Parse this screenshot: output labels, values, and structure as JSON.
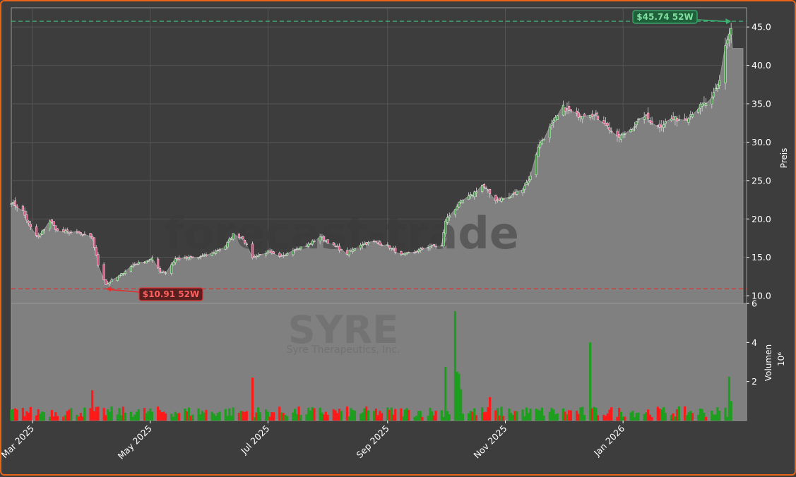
{
  "chart_data": {
    "type": "candlestick",
    "ticker": "SYRE",
    "company": "Syre Therapeutics, Inc.",
    "watermark": "forecast-trade",
    "colors": {
      "background": "#3d3d3d",
      "plot_bg": "#3d3d3d",
      "area_fill": "#808080",
      "up": "#1e9e1e",
      "down": "#ff1a1a",
      "high_line": "#3cb371",
      "low_line": "#e03030",
      "border": "#e8641a"
    },
    "price_panel": {
      "ylabel": "Preis",
      "ylim": [
        9.0,
        47.5
      ],
      "yticks": [
        "10.0",
        "15.0",
        "20.0",
        "25.0",
        "30.0",
        "35.0",
        "40.0",
        "45.0"
      ],
      "grid": true,
      "high_52w": {
        "value": 45.74,
        "label": "$45.74 52W",
        "date": "2026-02-26"
      },
      "low_52w": {
        "value": 10.91,
        "label": "$10.91 52W",
        "date": "2025-04-08"
      },
      "last_close_step": 42.2
    },
    "volume_panel": {
      "ylabel": "Volumen",
      "unit": "10⁶",
      "ylim": [
        0,
        6.0
      ],
      "yticks": [
        "2",
        "4",
        "6"
      ]
    },
    "xaxis": {
      "start": "2025-02-18",
      "end": "2026-03-06",
      "ticks": [
        {
          "date": "2025-03-01",
          "label": "Mar 2025"
        },
        {
          "date": "2025-05-01",
          "label": "May 2025"
        },
        {
          "date": "2025-07-01",
          "label": "Jul 2025"
        },
        {
          "date": "2025-09-01",
          "label": "Sep 2025"
        },
        {
          "date": "2025-11-01",
          "label": "Nov 2025"
        },
        {
          "date": "2026-01-01",
          "label": "Jan 2026"
        }
      ]
    },
    "close_anchors": [
      [
        "2025-02-18",
        22.2
      ],
      [
        "2025-02-24",
        21.0
      ],
      [
        "2025-03-01",
        18.3
      ],
      [
        "2025-03-04",
        17.6
      ],
      [
        "2025-03-10",
        19.8
      ],
      [
        "2025-03-14",
        18.4
      ],
      [
        "2025-03-24",
        18.2
      ],
      [
        "2025-04-01",
        17.5
      ],
      [
        "2025-04-04",
        14.0
      ],
      [
        "2025-04-08",
        11.5
      ],
      [
        "2025-04-14",
        12.4
      ],
      [
        "2025-04-22",
        14.0
      ],
      [
        "2025-05-02",
        14.8
      ],
      [
        "2025-05-06",
        13.2
      ],
      [
        "2025-05-09",
        13.0
      ],
      [
        "2025-05-14",
        14.8
      ],
      [
        "2025-05-26",
        15.0
      ],
      [
        "2025-06-02",
        15.5
      ],
      [
        "2025-06-09",
        16.5
      ],
      [
        "2025-06-13",
        18.0
      ],
      [
        "2025-06-18",
        17.5
      ],
      [
        "2025-06-23",
        15.0
      ],
      [
        "2025-07-01",
        15.7
      ],
      [
        "2025-07-07",
        15.0
      ],
      [
        "2025-07-14",
        16.0
      ],
      [
        "2025-07-21",
        16.5
      ],
      [
        "2025-07-28",
        17.7
      ],
      [
        "2025-08-04",
        16.5
      ],
      [
        "2025-08-11",
        15.5
      ],
      [
        "2025-08-18",
        16.7
      ],
      [
        "2025-08-25",
        17.0
      ],
      [
        "2025-09-01",
        16.5
      ],
      [
        "2025-09-08",
        15.3
      ],
      [
        "2025-09-15",
        15.7
      ],
      [
        "2025-09-22",
        16.4
      ],
      [
        "2025-09-29",
        16.5
      ],
      [
        "2025-10-01",
        19.8
      ],
      [
        "2025-10-08",
        22.0
      ],
      [
        "2025-10-14",
        23.0
      ],
      [
        "2025-10-20",
        24.4
      ],
      [
        "2025-10-27",
        22.5
      ],
      [
        "2025-11-03",
        22.8
      ],
      [
        "2025-11-10",
        24.0
      ],
      [
        "2025-11-14",
        25.5
      ],
      [
        "2025-11-18",
        29.5
      ],
      [
        "2025-11-24",
        31.8
      ],
      [
        "2025-12-01",
        34.5
      ],
      [
        "2025-12-08",
        33.5
      ],
      [
        "2025-12-15",
        33.8
      ],
      [
        "2025-12-22",
        32.7
      ],
      [
        "2025-12-29",
        30.5
      ],
      [
        "2026-01-05",
        31.7
      ],
      [
        "2026-01-12",
        33.5
      ],
      [
        "2026-01-19",
        32.0
      ],
      [
        "2026-01-26",
        33.0
      ],
      [
        "2026-02-02",
        33.0
      ],
      [
        "2026-02-09",
        34.5
      ],
      [
        "2026-02-16",
        35.5
      ],
      [
        "2026-02-20",
        38.0
      ],
      [
        "2026-02-23",
        42.7
      ],
      [
        "2026-02-26",
        44.8
      ]
    ],
    "volume_spikes": [
      [
        "2025-04-01",
        1.55
      ],
      [
        "2025-06-23",
        2.2
      ],
      [
        "2025-10-01",
        2.75
      ],
      [
        "2025-10-06",
        5.6
      ],
      [
        "2025-10-07",
        2.5
      ],
      [
        "2025-10-08",
        2.4
      ],
      [
        "2025-10-09",
        1.6
      ],
      [
        "2025-10-24",
        1.2
      ],
      [
        "2025-12-15",
        4.0
      ],
      [
        "2026-02-25",
        2.25
      ],
      [
        "2026-02-26",
        1.0
      ]
    ],
    "volume_baseline": 0.5
  }
}
